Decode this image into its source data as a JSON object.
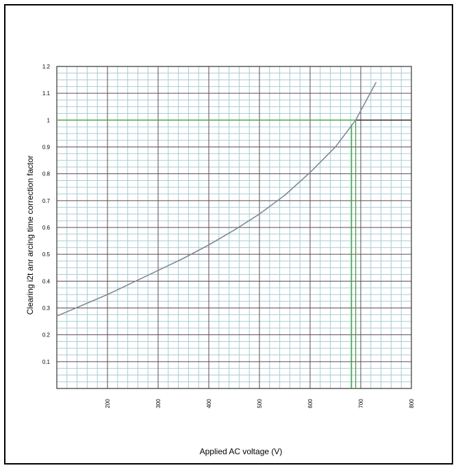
{
  "chart_data": {
    "type": "line",
    "title": "",
    "xlabel": "Applied AC voltage (V)",
    "ylabel": "Clearing i2t anr arcing time  correction factor",
    "xlim": [
      100,
      800
    ],
    "ylim": [
      0,
      1.2
    ],
    "x_ticks": [
      "200",
      "300",
      "400",
      "500",
      "600",
      "700",
      "800"
    ],
    "y_ticks": [
      "0.1",
      "0.2",
      "0.3",
      "0.4",
      "0.5",
      "0.6",
      "0.7",
      "0.8",
      "0.9",
      "1",
      "1.1",
      "1.2"
    ],
    "grid": true,
    "series": [
      {
        "color": "#7f8a94",
        "x": [
          100,
          150,
          200,
          250,
          300,
          350,
          400,
          450,
          500,
          550,
          600,
          650,
          690,
          730
        ],
        "y": [
          0.27,
          0.31,
          0.35,
          0.395,
          0.44,
          0.485,
          0.535,
          0.59,
          0.65,
          0.72,
          0.805,
          0.9,
          1.0,
          1.14
        ]
      }
    ],
    "reference_lines": {
      "color": "#3fa33f",
      "horizontal_y": 1.0,
      "vertical_x": 690
    },
    "colors": {
      "minor_grid": "#a9cbd3",
      "major_grid": "#5a4a52",
      "text": "#000000"
    }
  }
}
